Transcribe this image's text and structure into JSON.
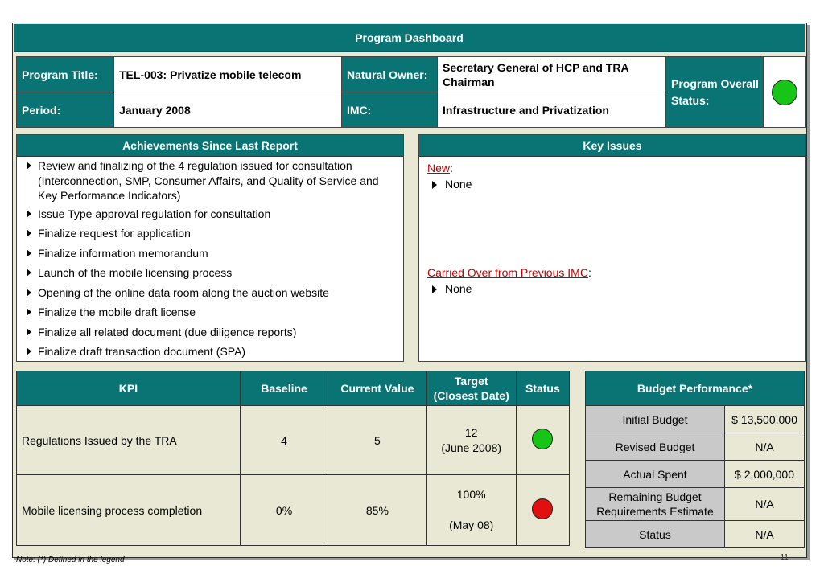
{
  "dashboard": {
    "title": "Program Dashboard"
  },
  "info": {
    "program_title_label": "Program Title:",
    "program_title_value": "TEL-003: Privatize mobile telecom",
    "natural_owner_label": "Natural Owner:",
    "natural_owner_value": "Secretary General of HCP and    TRA Chairman",
    "period_label": "Period:",
    "period_value": "January 2008",
    "imc_label": "IMC:",
    "imc_value": "Infrastructure and Privatization",
    "overall_status_label": "Program Overall Status:",
    "overall_status_color": "#17c517"
  },
  "achievements": {
    "title": "Achievements Since Last Report",
    "items": [
      "Review and finalizing of the 4 regulation issued for consultation (Interconnection, SMP, Consumer Affairs, and Quality of Service and Key Performance Indicators)",
      "Issue Type approval regulation for consultation",
      "Finalize request for application",
      "Finalize information memorandum",
      "Launch of the mobile licensing process",
      "Opening of the online data room along the auction website",
      "Finalize the mobile draft license",
      "Finalize all related document (due diligence reports)",
      "Finalize draft transaction document (SPA)"
    ]
  },
  "key_issues": {
    "title": "Key Issues",
    "new_label": "New",
    "new_items": [
      "None"
    ],
    "carried_label": "Carried Over from Previous IMC",
    "carried_items": [
      "None"
    ]
  },
  "kpi": {
    "headers": {
      "kpi": "KPI",
      "baseline": "Baseline",
      "current": "Current Value",
      "target_line1": "Target",
      "target_line2": "(Closest Date)",
      "status": "Status"
    },
    "rows": [
      {
        "kpi": "Regulations Issued by the TRA",
        "baseline": "4",
        "current": "5",
        "target_value": "12",
        "target_date": "(June 2008)",
        "status_color": "#17c517"
      },
      {
        "kpi": "Mobile licensing process completion",
        "baseline": "0%",
        "current": "85%",
        "target_value": "100%",
        "target_date": "(May 08)",
        "status_color": "#e01010"
      }
    ]
  },
  "budget": {
    "title": "Budget Performance*",
    "rows": [
      {
        "label": "Initial Budget",
        "value": "$ 13,500,000"
      },
      {
        "label": "Revised Budget",
        "value": "N/A"
      },
      {
        "label": "Actual Spent",
        "value": "$ 2,000,000"
      },
      {
        "label": "Remaining Budget Requirements Estimate",
        "value": "N/A"
      },
      {
        "label": "Status",
        "value": "N/A"
      }
    ]
  },
  "footer": {
    "note": "Note:  (*) Defined in the legend",
    "page_number": "11"
  },
  "colors": {
    "teal": "#0a7475",
    "green_status": "#17c517",
    "red_status": "#e01010",
    "red_link": "#c00000"
  }
}
